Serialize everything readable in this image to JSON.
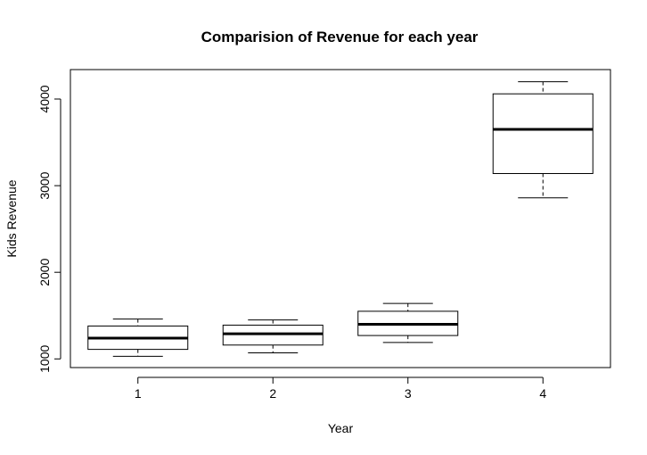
{
  "chart_data": {
    "type": "boxplot",
    "title": "Comparision of Revenue for each year",
    "xlabel": "Year",
    "ylabel": "Kids Revenue",
    "categories": [
      "1",
      "2",
      "3",
      "4"
    ],
    "yticks": [
      1000,
      2000,
      3000,
      4000
    ],
    "ylim": [
      900,
      4340
    ],
    "grid": false,
    "legend": "none",
    "series": [
      {
        "category": "1",
        "min": 1030,
        "q1": 1110,
        "median": 1240,
        "q3": 1380,
        "max": 1460
      },
      {
        "category": "2",
        "min": 1070,
        "q1": 1160,
        "median": 1290,
        "q3": 1390,
        "max": 1450
      },
      {
        "category": "3",
        "min": 1190,
        "q1": 1270,
        "median": 1400,
        "q3": 1550,
        "max": 1640
      },
      {
        "category": "4",
        "min": 2860,
        "q1": 3140,
        "median": 3650,
        "q3": 4060,
        "max": 4200
      }
    ]
  }
}
